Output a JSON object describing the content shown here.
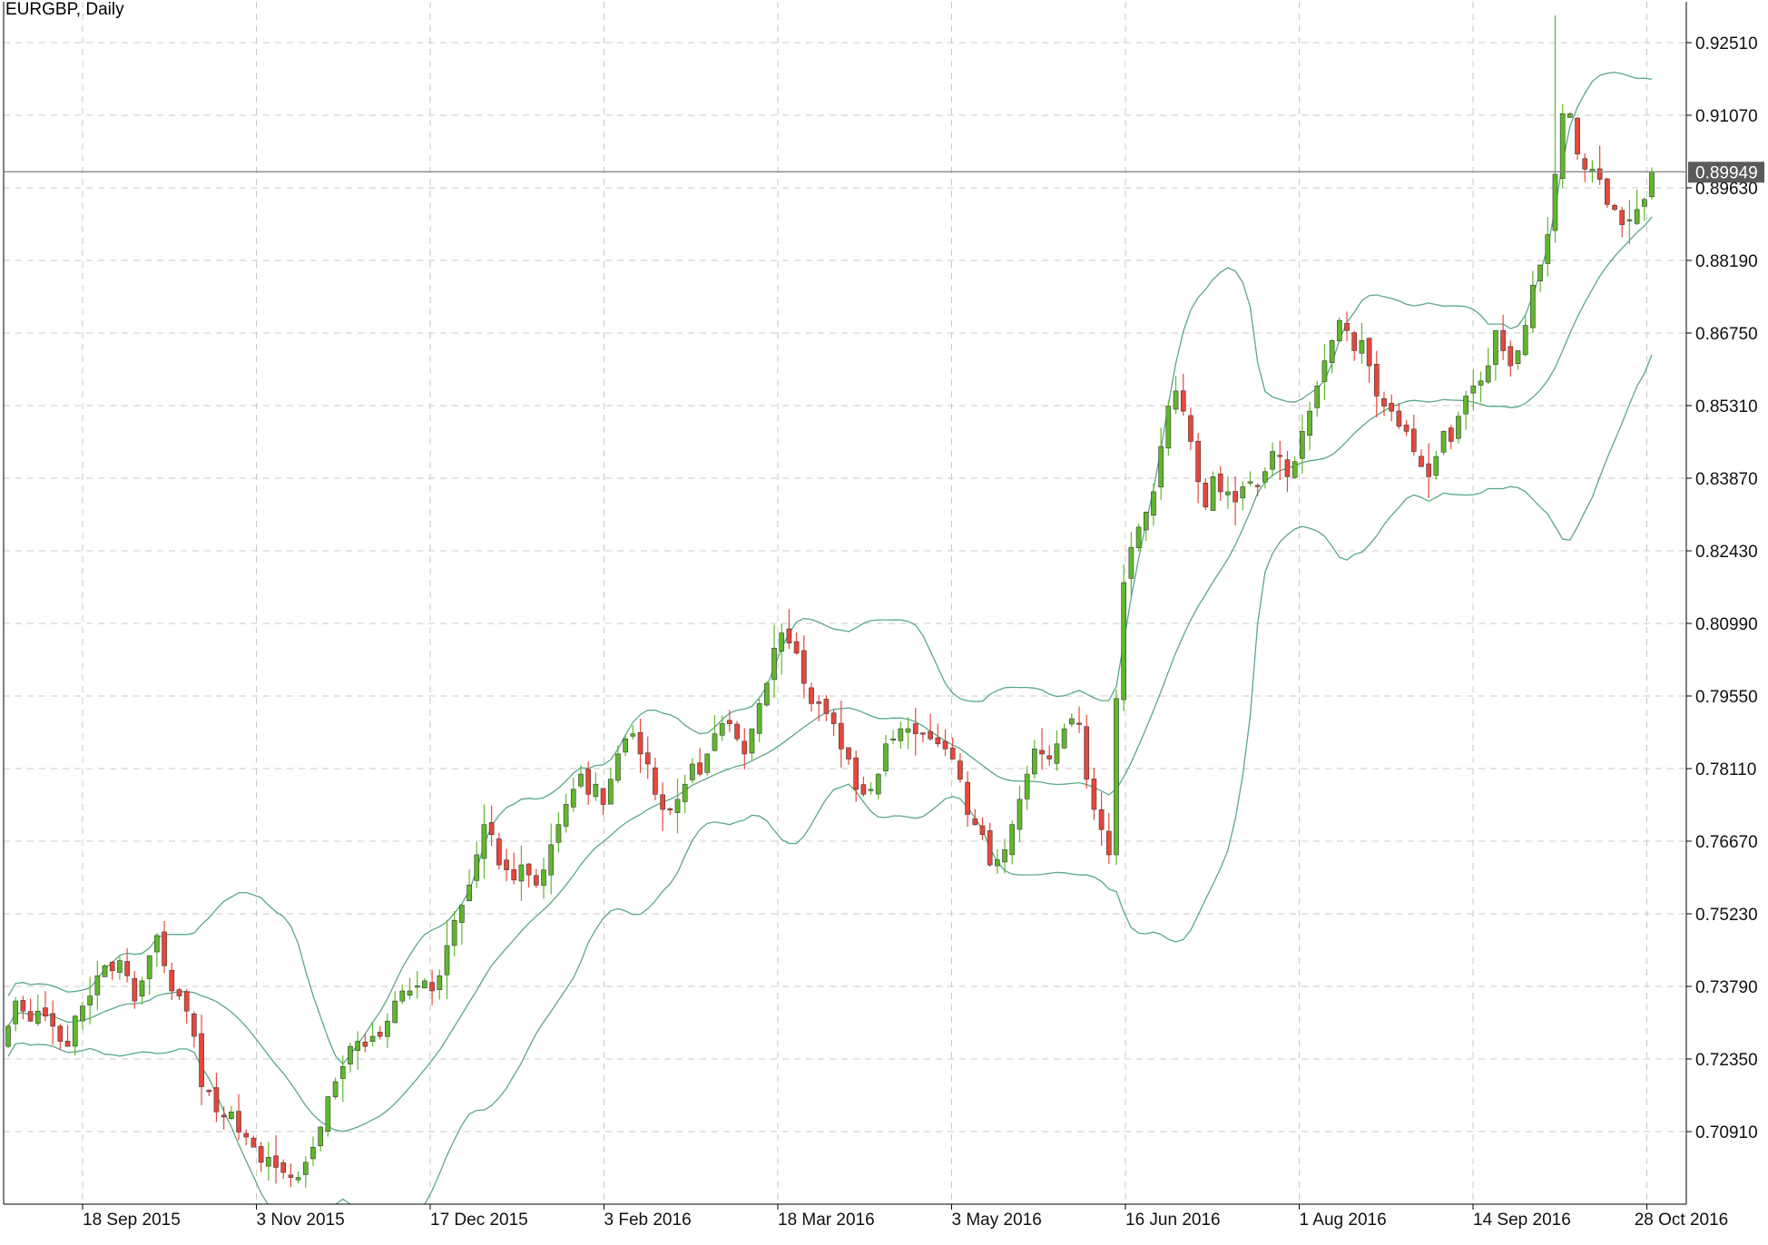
{
  "chart_data": {
    "type": "candlestick",
    "title": "EURGBP, Daily",
    "y_ticks": [
      "0.92510",
      "0.91070",
      "0.89630",
      "0.88190",
      "0.86750",
      "0.85310",
      "0.83870",
      "0.82430",
      "0.80990",
      "0.79550",
      "0.78110",
      "0.76670",
      "0.75230",
      "0.73790",
      "0.72350",
      "0.70910"
    ],
    "x_ticks": [
      "18 Sep 2015",
      "3 Nov 2015",
      "17 Dec 2015",
      "3 Feb 2016",
      "18 Mar 2016",
      "3 May 2016",
      "16 Jun 2016",
      "1 Aug 2016",
      "14 Sep 2016",
      "28 Oct 2016"
    ],
    "current_price": "0.89949",
    "current_price_value": 0.89949,
    "ylim": [
      0.6955,
      0.9305
    ],
    "grid": true,
    "legend": "none",
    "indicator": "Bollinger Bands",
    "colors": {
      "up": "#5fb82a",
      "down": "#e8473a",
      "wick": "#333333",
      "bands": "#5aa888",
      "grid": "#c8c8c8",
      "price_line": "#8a8a8a",
      "price_label_bg": "#5a5a5a",
      "price_label_text": "#ffffff"
    },
    "close_series": [
      0.73,
      0.735,
      0.733,
      0.731,
      0.733,
      0.732,
      0.73,
      0.727,
      0.726,
      0.732,
      0.734,
      0.736,
      0.74,
      0.742,
      0.741,
      0.743,
      0.74,
      0.735,
      0.739,
      0.744,
      0.748,
      0.742,
      0.737,
      0.736,
      0.733,
      0.728,
      0.718,
      0.717,
      0.713,
      0.712,
      0.713,
      0.709,
      0.708,
      0.706,
      0.703,
      0.704,
      0.702,
      0.701,
      0.7,
      0.7,
      0.703,
      0.706,
      0.71,
      0.716,
      0.719,
      0.722,
      0.726,
      0.727,
      0.726,
      0.728,
      0.728,
      0.731,
      0.735,
      0.737,
      0.737,
      0.738,
      0.739,
      0.737,
      0.74,
      0.746,
      0.751,
      0.754,
      0.758,
      0.764,
      0.77,
      0.768,
      0.762,
      0.761,
      0.759,
      0.762,
      0.76,
      0.758,
      0.761,
      0.766,
      0.77,
      0.774,
      0.777,
      0.78,
      0.776,
      0.778,
      0.774,
      0.779,
      0.784,
      0.787,
      0.788,
      0.784,
      0.782,
      0.776,
      0.773,
      0.773,
      0.775,
      0.778,
      0.782,
      0.78,
      0.784,
      0.788,
      0.79,
      0.79,
      0.787,
      0.784,
      0.789,
      0.794,
      0.798,
      0.805,
      0.808,
      0.806,
      0.804,
      0.798,
      0.794,
      0.794,
      0.792,
      0.79,
      0.785,
      0.783,
      0.777,
      0.776,
      0.777,
      0.78,
      0.786,
      0.787,
      0.789,
      0.789,
      0.788,
      0.788,
      0.787,
      0.786,
      0.785,
      0.783,
      0.779,
      0.772,
      0.77,
      0.768,
      0.762,
      0.763,
      0.765,
      0.77,
      0.775,
      0.78,
      0.785,
      0.784,
      0.783,
      0.786,
      0.789,
      0.791,
      0.79,
      0.779,
      0.773,
      0.769,
      0.764,
      0.795,
      0.818,
      0.825,
      0.829,
      0.832,
      0.836,
      0.845,
      0.853,
      0.856,
      0.852,
      0.846,
      0.838,
      0.833,
      0.839,
      0.836,
      0.836,
      0.834,
      0.837,
      0.838,
      0.837,
      0.84,
      0.844,
      0.843,
      0.839,
      0.842,
      0.848,
      0.852,
      0.857,
      0.862,
      0.866,
      0.87,
      0.868,
      0.864,
      0.866,
      0.861,
      0.855,
      0.853,
      0.852,
      0.849,
      0.848,
      0.844,
      0.841,
      0.839,
      0.843,
      0.848,
      0.846,
      0.851,
      0.855,
      0.857,
      0.858,
      0.861,
      0.868,
      0.864,
      0.861,
      0.864,
      0.869,
      0.877,
      0.881,
      0.887,
      0.899,
      0.911,
      0.911,
      0.903,
      0.9,
      0.9,
      0.898,
      0.893,
      0.892,
      0.889,
      0.89,
      0.892,
      0.894,
      0.8995
    ]
  }
}
